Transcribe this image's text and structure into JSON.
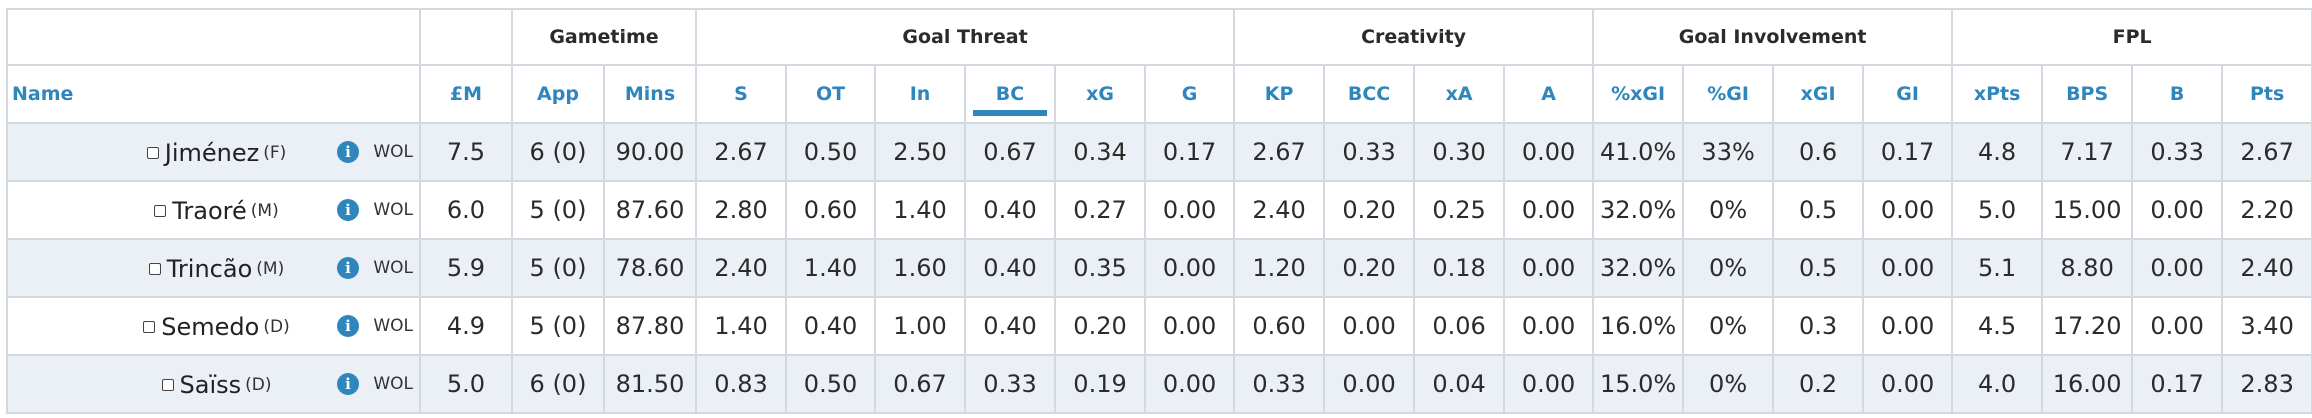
{
  "groups": [
    {
      "label": ""
    },
    {
      "label": ""
    },
    {
      "label": "Gametime"
    },
    {
      "label": "Goal Threat"
    },
    {
      "label": "Creativity"
    },
    {
      "label": "Goal Involvement"
    },
    {
      "label": "FPL"
    }
  ],
  "columns": {
    "name": "Name",
    "price": "£M",
    "app": "App",
    "mins": "Mins",
    "s": "S",
    "ot": "OT",
    "in": "In",
    "bc": "BC",
    "xg": "xG",
    "g": "G",
    "kp": "KP",
    "bcc": "BCC",
    "xa": "xA",
    "a": "A",
    "pct_xgi": "%xGI",
    "pct_gi": "%GI",
    "xgi": "xGI",
    "gi": "GI",
    "xpts": "xPts",
    "bps": "BPS",
    "b": "B",
    "pts": "Pts"
  },
  "sorted_column": "BC",
  "info_icon": "i",
  "players": [
    {
      "name": "Jiménez",
      "pos": "(F)",
      "team": "WOL",
      "price": "7.5",
      "app": "6 (0)",
      "mins": "90.00",
      "s": "2.67",
      "ot": "0.50",
      "in": "2.50",
      "bc": "0.67",
      "xg": "0.34",
      "g": "0.17",
      "kp": "2.67",
      "bcc": "0.33",
      "xa": "0.30",
      "a": "0.00",
      "pct_xgi": "41.0%",
      "pct_gi": "33%",
      "xgi": "0.6",
      "gi": "0.17",
      "xpts": "4.8",
      "bps": "7.17",
      "b": "0.33",
      "pts": "2.67"
    },
    {
      "name": "Traoré",
      "pos": "(M)",
      "team": "WOL",
      "price": "6.0",
      "app": "5 (0)",
      "mins": "87.60",
      "s": "2.80",
      "ot": "0.60",
      "in": "1.40",
      "bc": "0.40",
      "xg": "0.27",
      "g": "0.00",
      "kp": "2.40",
      "bcc": "0.20",
      "xa": "0.25",
      "a": "0.00",
      "pct_xgi": "32.0%",
      "pct_gi": "0%",
      "xgi": "0.5",
      "gi": "0.00",
      "xpts": "5.0",
      "bps": "15.00",
      "b": "0.00",
      "pts": "2.20"
    },
    {
      "name": "Trincão",
      "pos": "(M)",
      "team": "WOL",
      "price": "5.9",
      "app": "5 (0)",
      "mins": "78.60",
      "s": "2.40",
      "ot": "1.40",
      "in": "1.60",
      "bc": "0.40",
      "xg": "0.35",
      "g": "0.00",
      "kp": "1.20",
      "bcc": "0.20",
      "xa": "0.18",
      "a": "0.00",
      "pct_xgi": "32.0%",
      "pct_gi": "0%",
      "xgi": "0.5",
      "gi": "0.00",
      "xpts": "5.1",
      "bps": "8.80",
      "b": "0.00",
      "pts": "2.40"
    },
    {
      "name": "Semedo",
      "pos": "(D)",
      "team": "WOL",
      "price": "4.9",
      "app": "5 (0)",
      "mins": "87.80",
      "s": "1.40",
      "ot": "0.40",
      "in": "1.00",
      "bc": "0.40",
      "xg": "0.20",
      "g": "0.00",
      "kp": "0.60",
      "bcc": "0.00",
      "xa": "0.06",
      "a": "0.00",
      "pct_xgi": "16.0%",
      "pct_gi": "0%",
      "xgi": "0.3",
      "gi": "0.00",
      "xpts": "4.5",
      "bps": "17.20",
      "b": "0.00",
      "pts": "3.40"
    },
    {
      "name": "Saïss",
      "pos": "(D)",
      "team": "WOL",
      "price": "5.0",
      "app": "6 (0)",
      "mins": "81.50",
      "s": "0.83",
      "ot": "0.50",
      "in": "0.67",
      "bc": "0.33",
      "xg": "0.19",
      "g": "0.00",
      "kp": "0.33",
      "bcc": "0.00",
      "xa": "0.04",
      "a": "0.00",
      "pct_xgi": "15.0%",
      "pct_gi": "0%",
      "xgi": "0.2",
      "gi": "0.00",
      "xpts": "4.0",
      "bps": "16.00",
      "b": "0.17",
      "pts": "2.83"
    }
  ]
}
